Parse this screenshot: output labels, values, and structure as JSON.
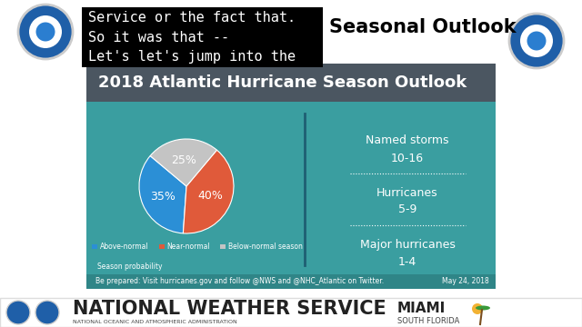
{
  "caption_overlay": [
    "Service or the fact that.",
    "So it was that --",
    "Let's let's jump into the"
  ],
  "header": {
    "title": "Seasonal Outlook"
  },
  "chart_data": {
    "type": "pie",
    "title": "2018 Atlantic Hurricane Season Outlook",
    "categories": [
      "Above-normal",
      "Near-normal",
      "Below-normal season"
    ],
    "values": [
      35,
      40,
      25
    ],
    "value_labels": [
      "35%",
      "40%",
      "25%"
    ],
    "colors": [
      "#2b8fd6",
      "#e05a3a",
      "#c4c4c4"
    ],
    "data_labels": true,
    "legend": "lower center",
    "caption": "Season probability"
  },
  "forecast": [
    {
      "label": "Named storms",
      "value": "10-16"
    },
    {
      "label": "Hurricanes",
      "value": "5-9"
    },
    {
      "label": "Major hurricanes",
      "value": "1-4"
    }
  ],
  "footer": {
    "note": "Be prepared: Visit hurricanes.gov and follow @NWS and @NHC_Atlantic on Twitter.",
    "date": "May 24, 2018"
  },
  "banner": {
    "name": "NATIONAL WEATHER SERVICE",
    "agency": "NATIONAL OCEANIC AND ATMOSPHERIC ADMINISTRATION",
    "office": "MIAMI",
    "region": "SOUTH FLORIDA"
  }
}
